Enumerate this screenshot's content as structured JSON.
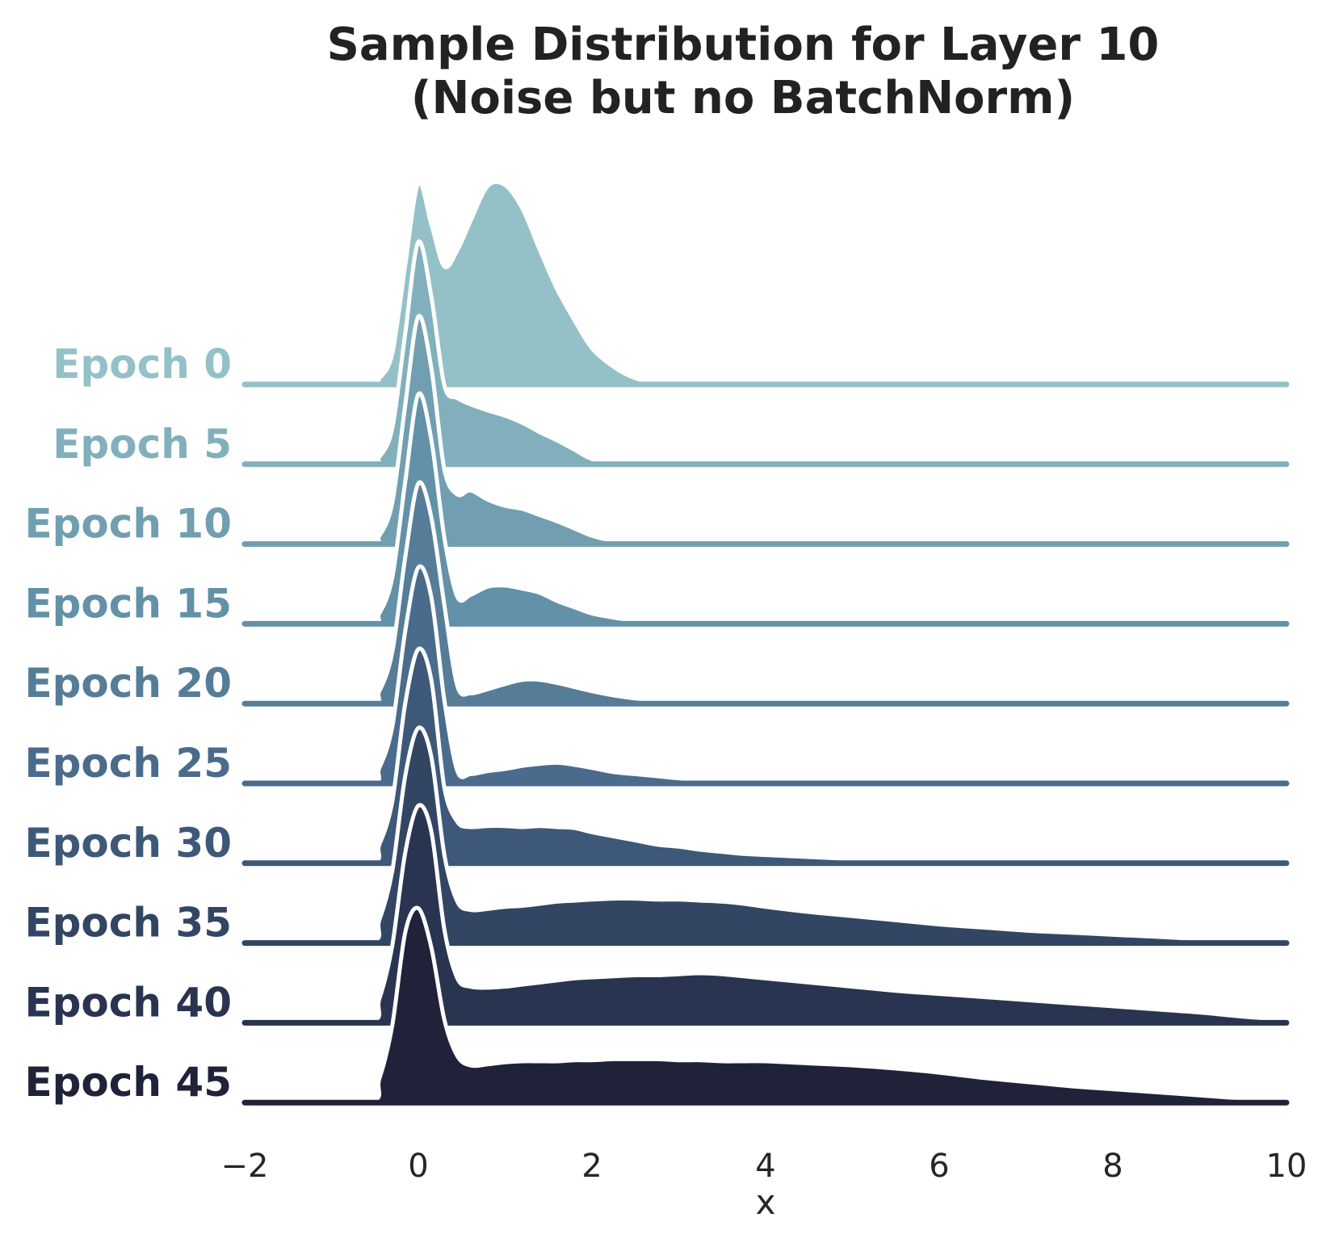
{
  "chart_data": {
    "type": "ridgeline",
    "title": "Sample Distribution for Layer 10\n(Noise but no BatchNorm)",
    "xlabel": "x",
    "xlim": [
      -2,
      10
    ],
    "xticks": [
      "−2",
      "0",
      "2",
      "4",
      "6",
      "8",
      "10"
    ],
    "xtick_values": [
      -2,
      0,
      2,
      4,
      6,
      8,
      10
    ],
    "grid": false,
    "x": [
      -2,
      -0.6,
      -0.45,
      -0.3,
      -0.15,
      0,
      0.15,
      0.3,
      0.45,
      0.6,
      0.8,
      1,
      1.2,
      1.4,
      1.6,
      1.8,
      2,
      2.25,
      2.5,
      2.75,
      3,
      3.25,
      3.5,
      3.75,
      4,
      4.5,
      5,
      5.5,
      6,
      6.5,
      7,
      7.5,
      8,
      8.5,
      9,
      9.5,
      10
    ],
    "series": [
      {
        "name": "Epoch 0",
        "color": "#94c1c7",
        "values": [
          0,
          0,
          0.06,
          0.3,
          1.16,
          1.95,
          1.55,
          1.14,
          1.3,
          1.58,
          1.92,
          1.93,
          1.7,
          1.3,
          0.92,
          0.62,
          0.35,
          0.17,
          0.06,
          0.02,
          0,
          0,
          0,
          0,
          0,
          0,
          0,
          0,
          0,
          0,
          0,
          0,
          0,
          0,
          0,
          0,
          0
        ]
      },
      {
        "name": "Epoch 5",
        "color": "#81b0bc",
        "values": [
          0,
          0,
          0.07,
          0.35,
          1.27,
          2.15,
          1.62,
          0.76,
          0.64,
          0.58,
          0.52,
          0.47,
          0.4,
          0.31,
          0.23,
          0.14,
          0.05,
          0.02,
          0,
          0,
          0,
          0,
          0,
          0,
          0,
          0,
          0,
          0,
          0,
          0,
          0,
          0,
          0,
          0,
          0,
          0,
          0
        ]
      },
      {
        "name": "Epoch 10",
        "color": "#719fb1",
        "values": [
          0,
          0,
          0.08,
          0.4,
          1.35,
          2.2,
          1.7,
          0.72,
          0.48,
          0.52,
          0.43,
          0.37,
          0.34,
          0.28,
          0.22,
          0.15,
          0.08,
          0.03,
          0.01,
          0,
          0,
          0,
          0,
          0,
          0,
          0,
          0,
          0,
          0,
          0,
          0,
          0,
          0,
          0,
          0,
          0,
          0
        ]
      },
      {
        "name": "Epoch 15",
        "color": "#6291a8",
        "values": [
          0,
          0,
          0.1,
          0.45,
          1.38,
          2.22,
          1.78,
          0.83,
          0.26,
          0.28,
          0.36,
          0.37,
          0.34,
          0.3,
          0.22,
          0.16,
          0.1,
          0.06,
          0.03,
          0.02,
          0.01,
          0,
          0,
          0,
          0,
          0,
          0,
          0,
          0,
          0,
          0,
          0,
          0,
          0,
          0,
          0,
          0
        ]
      },
      {
        "name": "Epoch 20",
        "color": "#567d98",
        "values": [
          0,
          0,
          0.12,
          0.5,
          1.42,
          2.13,
          1.8,
          0.95,
          0.17,
          0.1,
          0.14,
          0.19,
          0.23,
          0.23,
          0.2,
          0.16,
          0.12,
          0.08,
          0.05,
          0.03,
          0.02,
          0.02,
          0.01,
          0,
          0,
          0,
          0,
          0,
          0,
          0,
          0,
          0,
          0,
          0,
          0,
          0,
          0
        ]
      },
      {
        "name": "Epoch 25",
        "color": "#4b6b8c",
        "values": [
          0,
          0,
          0.15,
          0.55,
          1.48,
          2.09,
          1.8,
          0.8,
          0.12,
          0.09,
          0.12,
          0.14,
          0.17,
          0.19,
          0.2,
          0.18,
          0.15,
          0.11,
          0.09,
          0.07,
          0.05,
          0.04,
          0.03,
          0.02,
          0.01,
          0,
          0,
          0,
          0,
          0,
          0,
          0,
          0,
          0,
          0,
          0,
          0
        ]
      },
      {
        "name": "Epoch 30",
        "color": "#3d5878",
        "values": [
          0,
          0,
          0.18,
          0.6,
          1.55,
          2.07,
          1.77,
          0.73,
          0.4,
          0.35,
          0.36,
          0.36,
          0.35,
          0.36,
          0.35,
          0.34,
          0.3,
          0.26,
          0.22,
          0.18,
          0.16,
          0.13,
          0.11,
          0.09,
          0.08,
          0.06,
          0.04,
          0.02,
          0.01,
          0,
          0,
          0,
          0,
          0,
          0,
          0,
          0
        ]
      },
      {
        "name": "Epoch 35",
        "color": "#324563",
        "values": [
          0,
          0,
          0.22,
          0.7,
          1.62,
          2.08,
          1.8,
          0.85,
          0.4,
          0.32,
          0.33,
          0.35,
          0.36,
          0.38,
          0.4,
          0.41,
          0.42,
          0.43,
          0.43,
          0.42,
          0.42,
          0.41,
          0.4,
          0.38,
          0.35,
          0.3,
          0.26,
          0.22,
          0.18,
          0.15,
          0.12,
          0.1,
          0.08,
          0.06,
          0.04,
          0.02,
          0
        ]
      },
      {
        "name": "Epoch 40",
        "color": "#293451",
        "values": [
          0,
          0,
          0.23,
          0.75,
          1.65,
          2.1,
          1.85,
          0.9,
          0.43,
          0.35,
          0.34,
          0.35,
          0.37,
          0.39,
          0.41,
          0.43,
          0.44,
          0.45,
          0.46,
          0.46,
          0.47,
          0.48,
          0.47,
          0.45,
          0.43,
          0.39,
          0.35,
          0.31,
          0.28,
          0.25,
          0.22,
          0.19,
          0.16,
          0.13,
          0.1,
          0.06,
          0.03
        ]
      },
      {
        "name": "Epoch 45",
        "color": "#20223a",
        "values": [
          0,
          0,
          0.23,
          0.75,
          1.65,
          1.88,
          1.5,
          0.8,
          0.45,
          0.36,
          0.37,
          0.39,
          0.4,
          0.4,
          0.4,
          0.41,
          0.41,
          0.42,
          0.42,
          0.42,
          0.41,
          0.41,
          0.4,
          0.4,
          0.4,
          0.38,
          0.36,
          0.33,
          0.29,
          0.24,
          0.2,
          0.16,
          0.13,
          0.1,
          0.07,
          0.04,
          0.02
        ]
      }
    ]
  }
}
